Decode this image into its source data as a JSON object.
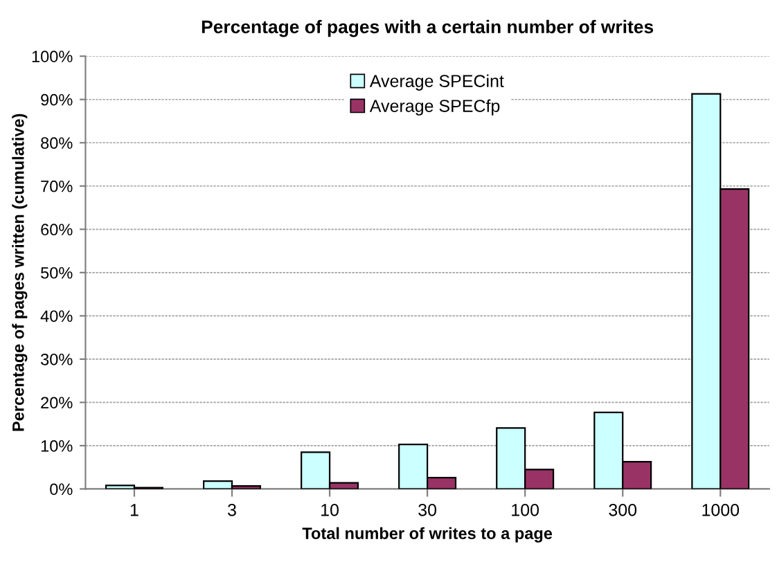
{
  "chart_data": {
    "type": "bar",
    "title": "Percentage of pages with a certain number of writes",
    "xlabel": "Total number of writes to a page",
    "ylabel": "Percentage of pages written (cumulative)",
    "categories": [
      "1",
      "3",
      "10",
      "30",
      "100",
      "300",
      "1000"
    ],
    "series": [
      {
        "name": "Average SPECint",
        "color": "#ccffff",
        "values": [
          0.8,
          1.8,
          8.5,
          10.3,
          14.1,
          17.7,
          91.3
        ]
      },
      {
        "name": "Average SPECfp",
        "color": "#993366",
        "values": [
          0.3,
          0.7,
          1.4,
          2.6,
          4.5,
          6.3,
          69.3
        ]
      }
    ],
    "ylim": [
      0,
      100
    ],
    "yticks": [
      {
        "value": 0,
        "label": "0%"
      },
      {
        "value": 10,
        "label": "10%"
      },
      {
        "value": 20,
        "label": "20%"
      },
      {
        "value": 30,
        "label": "30%"
      },
      {
        "value": 40,
        "label": "40%"
      },
      {
        "value": 50,
        "label": "50%"
      },
      {
        "value": 60,
        "label": "60%"
      },
      {
        "value": 70,
        "label": "70%"
      },
      {
        "value": 80,
        "label": "80%"
      },
      {
        "value": 90,
        "label": "90%"
      },
      {
        "value": 100,
        "label": "100%"
      }
    ],
    "grid": "y",
    "legend": "top"
  }
}
